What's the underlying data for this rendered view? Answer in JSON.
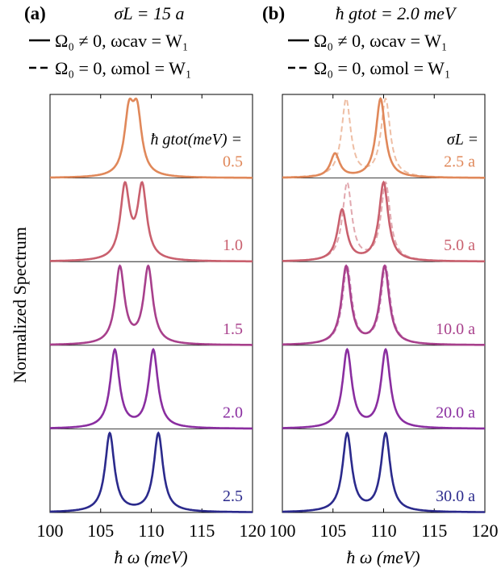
{
  "figure": {
    "ylabel": "Normalized Spectrum",
    "legend_solid": "Ω₀ ≠ 0, ωcav = W₁",
    "legend_dashed": "Ω₀ = 0, ωmol = W₁"
  },
  "chart_data": [
    {
      "type": "line",
      "panel_label": "(a)",
      "header": "σL = 15 a",
      "legend": [
        {
          "style": "solid",
          "label": "Ω₀ ≠ 0, ωcav = W₁"
        },
        {
          "style": "dashed",
          "label": "Ω₀ = 0, ωmol = W₁"
        }
      ],
      "xlabel": "ħ ω (meV)",
      "ylabel": "Normalized Spectrum",
      "xlim": [
        100,
        120
      ],
      "xticks": [
        "100",
        "105",
        "110",
        "115",
        "120"
      ],
      "series_header": "ħ gtot(meV) =",
      "series": [
        {
          "label": "0.5",
          "color": "#e0885a",
          "solid_peaks": [
            107.8,
            108.6
          ],
          "dashed_peaks": [
            107.8,
            108.6
          ]
        },
        {
          "label": "1.0",
          "color": "#c9606e",
          "solid_peaks": [
            107.4,
            109.1
          ],
          "dashed_peaks": [
            107.4,
            109.1
          ]
        },
        {
          "label": "1.5",
          "color": "#a8408c",
          "solid_peaks": [
            106.9,
            109.7
          ],
          "dashed_peaks": [
            106.9,
            109.7
          ]
        },
        {
          "label": "2.0",
          "color": "#8a2ea0",
          "solid_peaks": [
            106.4,
            110.2
          ],
          "dashed_peaks": [
            106.4,
            110.2
          ]
        },
        {
          "label": "2.5",
          "color": "#2b2a8c",
          "solid_peaks": [
            105.9,
            110.7
          ],
          "dashed_peaks": [
            105.9,
            110.7
          ]
        }
      ]
    },
    {
      "type": "line",
      "panel_label": "(b)",
      "header": "ħ gtot = 2.0 meV",
      "legend": [
        {
          "style": "solid",
          "label": "Ω₀ ≠ 0, ωcav = W₁"
        },
        {
          "style": "dashed",
          "label": "Ω₀ = 0, ωmol = W₁"
        }
      ],
      "xlabel": "ħ ω (meV)",
      "xlim": [
        100,
        120
      ],
      "xticks": [
        "100",
        "105",
        "110",
        "115",
        "120"
      ],
      "series_header": "σL =",
      "series": [
        {
          "label": "2.5 a",
          "color": "#e0885a",
          "solid_peaks": [
            105.2,
            109.7
          ],
          "solid_heights": [
            0.3,
            1.0
          ],
          "dashed_peaks": [
            106.3,
            110.2
          ],
          "dashed_heights": [
            1.0,
            1.0
          ]
        },
        {
          "label": "5.0 a",
          "color": "#c9606e",
          "solid_peaks": [
            105.9,
            110.0
          ],
          "solid_heights": [
            0.65,
            1.0
          ],
          "dashed_peaks": [
            106.4,
            110.2
          ],
          "dashed_heights": [
            1.0,
            1.0
          ]
        },
        {
          "label": "10.0 a",
          "color": "#a8408c",
          "solid_peaks": [
            106.3,
            110.1
          ],
          "solid_heights": [
            1.0,
            1.0
          ],
          "dashed_peaks": [
            106.4,
            110.2
          ],
          "dashed_heights": [
            1.0,
            1.0
          ]
        },
        {
          "label": "20.0 a",
          "color": "#8a2ea0",
          "solid_peaks": [
            106.4,
            110.2
          ],
          "solid_heights": [
            1.0,
            1.0
          ],
          "dashed_peaks": [
            106.4,
            110.2
          ],
          "dashed_heights": [
            1.0,
            1.0
          ]
        },
        {
          "label": "30.0 a",
          "color": "#2b2a8c",
          "solid_peaks": [
            106.4,
            110.2
          ],
          "solid_heights": [
            1.0,
            1.0
          ],
          "dashed_peaks": [
            106.4,
            110.2
          ],
          "dashed_heights": [
            1.0,
            1.0
          ]
        }
      ]
    }
  ]
}
